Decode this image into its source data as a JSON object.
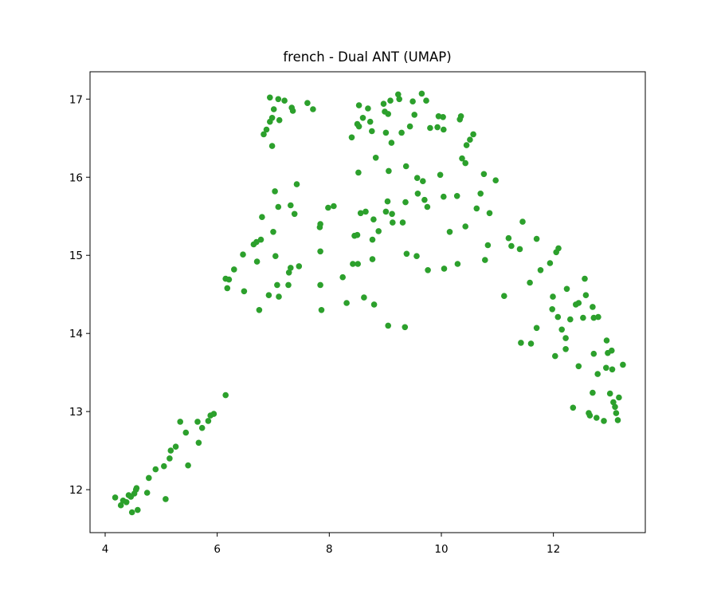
{
  "chart_data": {
    "type": "scatter",
    "title": "french - Dual ANT (UMAP)",
    "xlabel": "",
    "ylabel": "",
    "xlim": [
      3.73,
      13.64
    ],
    "ylim": [
      11.45,
      17.35
    ],
    "xticks": [
      4,
      6,
      8,
      10,
      12
    ],
    "yticks": [
      12,
      13,
      14,
      15,
      16,
      17
    ],
    "grid": false,
    "legend": "none",
    "color": "#2ca02c",
    "series": [
      {
        "points": [
          [
            4.18,
            11.9
          ],
          [
            4.28,
            11.8
          ],
          [
            4.32,
            11.86
          ],
          [
            4.38,
            11.84
          ],
          [
            4.42,
            11.93
          ],
          [
            4.46,
            11.91
          ],
          [
            4.48,
            11.71
          ],
          [
            4.52,
            11.95
          ],
          [
            4.55,
            12.0
          ],
          [
            4.58,
            11.74
          ],
          [
            4.56,
            12.02
          ],
          [
            4.75,
            11.96
          ],
          [
            4.78,
            12.15
          ],
          [
            4.9,
            12.26
          ],
          [
            5.05,
            12.3
          ],
          [
            5.08,
            11.88
          ],
          [
            5.15,
            12.4
          ],
          [
            5.17,
            12.5
          ],
          [
            5.26,
            12.55
          ],
          [
            5.34,
            12.87
          ],
          [
            5.44,
            12.73
          ],
          [
            5.48,
            12.31
          ],
          [
            5.65,
            12.87
          ],
          [
            5.67,
            12.6
          ],
          [
            5.73,
            12.79
          ],
          [
            5.84,
            12.88
          ],
          [
            5.88,
            12.95
          ],
          [
            5.94,
            12.97
          ],
          [
            6.15,
            13.21
          ],
          [
            6.15,
            14.7
          ],
          [
            6.18,
            14.58
          ],
          [
            6.21,
            14.69
          ],
          [
            6.3,
            14.82
          ],
          [
            6.46,
            15.01
          ],
          [
            6.48,
            14.54
          ],
          [
            6.65,
            15.14
          ],
          [
            6.7,
            15.17
          ],
          [
            6.71,
            14.92
          ],
          [
            6.75,
            14.3
          ],
          [
            6.78,
            15.2
          ],
          [
            6.8,
            15.49
          ],
          [
            6.83,
            16.55
          ],
          [
            6.88,
            16.61
          ],
          [
            6.92,
            14.49
          ],
          [
            6.94,
            17.02
          ],
          [
            6.94,
            16.71
          ],
          [
            6.98,
            16.4
          ],
          [
            6.98,
            16.76
          ],
          [
            7.0,
            15.3
          ],
          [
            7.01,
            16.87
          ],
          [
            7.03,
            15.82
          ],
          [
            7.04,
            14.99
          ],
          [
            7.07,
            14.62
          ],
          [
            7.09,
            15.62
          ],
          [
            7.1,
            14.47
          ],
          [
            7.09,
            17.0
          ],
          [
            7.11,
            16.73
          ],
          [
            7.2,
            16.98
          ],
          [
            7.27,
            14.62
          ],
          [
            7.28,
            14.78
          ],
          [
            7.31,
            14.84
          ],
          [
            7.31,
            15.64
          ],
          [
            7.33,
            16.89
          ],
          [
            7.35,
            16.85
          ],
          [
            7.38,
            15.53
          ],
          [
            7.42,
            15.91
          ],
          [
            7.46,
            14.86
          ],
          [
            7.61,
            16.95
          ],
          [
            7.71,
            16.87
          ],
          [
            7.83,
            15.36
          ],
          [
            7.84,
            15.4
          ],
          [
            7.84,
            15.05
          ],
          [
            7.84,
            14.62
          ],
          [
            7.86,
            14.3
          ],
          [
            7.98,
            15.61
          ],
          [
            8.08,
            15.63
          ],
          [
            8.24,
            14.72
          ],
          [
            8.31,
            14.39
          ],
          [
            8.4,
            16.51
          ],
          [
            8.42,
            14.89
          ],
          [
            8.45,
            15.25
          ],
          [
            8.5,
            16.68
          ],
          [
            8.5,
            15.26
          ],
          [
            8.51,
            14.89
          ],
          [
            8.52,
            16.06
          ],
          [
            8.53,
            16.92
          ],
          [
            8.53,
            16.65
          ],
          [
            8.56,
            15.54
          ],
          [
            8.6,
            16.76
          ],
          [
            8.62,
            14.46
          ],
          [
            8.65,
            15.56
          ],
          [
            8.69,
            16.88
          ],
          [
            8.73,
            16.71
          ],
          [
            8.76,
            16.59
          ],
          [
            8.77,
            15.2
          ],
          [
            8.77,
            14.95
          ],
          [
            8.79,
            15.46
          ],
          [
            8.8,
            14.37
          ],
          [
            8.83,
            16.25
          ],
          [
            8.88,
            15.31
          ],
          [
            8.97,
            16.94
          ],
          [
            8.99,
            16.84
          ],
          [
            9.01,
            16.57
          ],
          [
            9.01,
            15.56
          ],
          [
            9.04,
            15.69
          ],
          [
            9.05,
            16.81
          ],
          [
            9.05,
            14.1
          ],
          [
            9.06,
            16.08
          ],
          [
            9.09,
            16.98
          ],
          [
            9.11,
            16.44
          ],
          [
            9.12,
            15.53
          ],
          [
            9.13,
            15.42
          ],
          [
            9.23,
            17.06
          ],
          [
            9.25,
            17.0
          ],
          [
            9.29,
            16.57
          ],
          [
            9.31,
            15.42
          ],
          [
            9.35,
            14.08
          ],
          [
            9.36,
            15.68
          ],
          [
            9.37,
            16.14
          ],
          [
            9.38,
            15.02
          ],
          [
            9.44,
            16.65
          ],
          [
            9.49,
            16.97
          ],
          [
            9.52,
            16.8
          ],
          [
            9.56,
            14.99
          ],
          [
            9.57,
            15.99
          ],
          [
            9.58,
            15.79
          ],
          [
            9.65,
            17.07
          ],
          [
            9.67,
            15.95
          ],
          [
            9.7,
            15.71
          ],
          [
            9.73,
            16.98
          ],
          [
            9.75,
            15.62
          ],
          [
            9.76,
            14.81
          ],
          [
            9.8,
            16.63
          ],
          [
            9.93,
            16.64
          ],
          [
            9.95,
            16.78
          ],
          [
            9.98,
            16.03
          ],
          [
            10.03,
            16.77
          ],
          [
            10.04,
            16.61
          ],
          [
            10.04,
            15.75
          ],
          [
            10.05,
            14.83
          ],
          [
            10.15,
            15.3
          ],
          [
            10.28,
            15.76
          ],
          [
            10.29,
            14.89
          ],
          [
            10.33,
            16.74
          ],
          [
            10.35,
            16.78
          ],
          [
            10.37,
            16.24
          ],
          [
            10.43,
            16.18
          ],
          [
            10.43,
            15.37
          ],
          [
            10.45,
            16.41
          ],
          [
            10.51,
            16.48
          ],
          [
            10.57,
            16.55
          ],
          [
            10.63,
            15.6
          ],
          [
            10.7,
            15.79
          ],
          [
            10.76,
            16.04
          ],
          [
            10.78,
            14.94
          ],
          [
            10.83,
            15.13
          ],
          [
            10.86,
            15.54
          ],
          [
            10.97,
            15.96
          ],
          [
            11.12,
            14.48
          ],
          [
            11.2,
            15.22
          ],
          [
            11.25,
            15.12
          ],
          [
            11.4,
            15.08
          ],
          [
            11.42,
            13.88
          ],
          [
            11.45,
            15.43
          ],
          [
            11.58,
            14.65
          ],
          [
            11.6,
            13.87
          ],
          [
            11.7,
            14.07
          ],
          [
            11.7,
            15.21
          ],
          [
            11.77,
            14.81
          ],
          [
            11.94,
            14.9
          ],
          [
            11.98,
            14.31
          ],
          [
            11.99,
            14.47
          ],
          [
            12.03,
            13.71
          ],
          [
            12.05,
            15.04
          ],
          [
            12.08,
            14.21
          ],
          [
            12.09,
            15.09
          ],
          [
            12.15,
            14.05
          ],
          [
            12.22,
            13.94
          ],
          [
            12.22,
            13.8
          ],
          [
            12.24,
            14.57
          ],
          [
            12.3,
            14.18
          ],
          [
            12.35,
            13.05
          ],
          [
            12.4,
            14.37
          ],
          [
            12.45,
            14.39
          ],
          [
            12.45,
            13.58
          ],
          [
            12.53,
            14.2
          ],
          [
            12.56,
            14.7
          ],
          [
            12.58,
            14.49
          ],
          [
            12.63,
            12.98
          ],
          [
            12.65,
            12.95
          ],
          [
            12.7,
            14.34
          ],
          [
            12.72,
            14.2
          ],
          [
            12.7,
            13.24
          ],
          [
            12.72,
            13.74
          ],
          [
            12.77,
            12.92
          ],
          [
            12.79,
            13.48
          ],
          [
            12.8,
            14.21
          ],
          [
            12.9,
            12.88
          ],
          [
            12.94,
            13.56
          ],
          [
            12.95,
            13.91
          ],
          [
            12.97,
            13.75
          ],
          [
            13.01,
            13.23
          ],
          [
            13.04,
            13.78
          ],
          [
            13.05,
            13.54
          ],
          [
            13.07,
            13.12
          ],
          [
            13.1,
            13.06
          ],
          [
            13.12,
            12.98
          ],
          [
            13.15,
            12.89
          ],
          [
            13.17,
            13.18
          ],
          [
            13.24,
            13.6
          ]
        ]
      }
    ]
  }
}
